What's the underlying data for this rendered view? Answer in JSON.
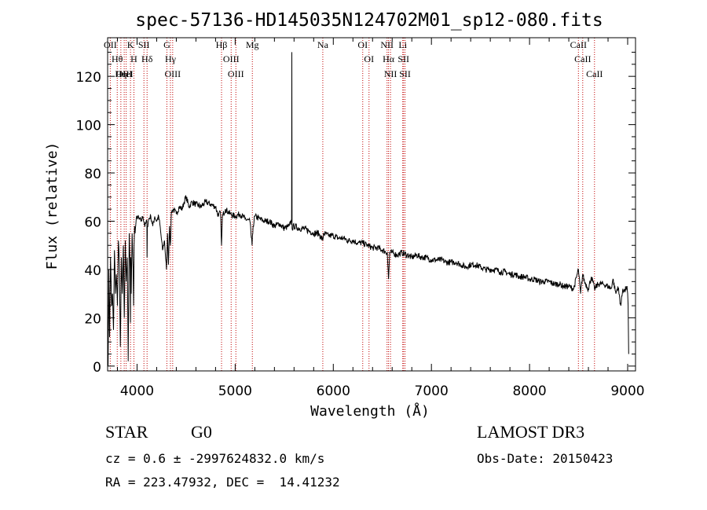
{
  "chart_data": {
    "type": "line",
    "title": "spec-57136-HD145035N124702M01_sp12-080.fits",
    "xlabel": "Wavelength (Å)",
    "ylabel": "Flux (relative)",
    "xlim": [
      3700,
      9080
    ],
    "ylim": [
      -2,
      136
    ],
    "xticks": [
      4000,
      5000,
      6000,
      7000,
      8000,
      9000
    ],
    "yticks": [
      0,
      20,
      40,
      60,
      80,
      100,
      120
    ],
    "grid": false,
    "series": [
      {
        "name": "flux",
        "x": [
          3700,
          3705,
          3712,
          3720,
          3730,
          3740,
          3750,
          3760,
          3770,
          3780,
          3790,
          3800,
          3810,
          3820,
          3830,
          3840,
          3850,
          3860,
          3870,
          3880,
          3890,
          3900,
          3910,
          3920,
          3930,
          3933,
          3936,
          3940,
          3950,
          3960,
          3965,
          3968,
          3970,
          3975,
          3980,
          3990,
          4000,
          4020,
          4040,
          4060,
          4080,
          4100,
          4102,
          4105,
          4120,
          4140,
          4160,
          4180,
          4200,
          4220,
          4240,
          4260,
          4280,
          4300,
          4310,
          4320,
          4330,
          4340,
          4350,
          4370,
          4400,
          4430,
          4460,
          4480,
          4500,
          4530,
          4560,
          4600,
          4650,
          4700,
          4750,
          4800,
          4830,
          4850,
          4861,
          4870,
          4900,
          4950,
          5000,
          5050,
          5100,
          5150,
          5172,
          5183,
          5200,
          5250,
          5300,
          5350,
          5400,
          5450,
          5500,
          5550,
          5575,
          5577,
          5580,
          5600,
          5650,
          5700,
          5750,
          5800,
          5850,
          5893,
          5900,
          5950,
          6000,
          6050,
          6100,
          6150,
          6200,
          6250,
          6300,
          6350,
          6400,
          6450,
          6500,
          6550,
          6563,
          6575,
          6600,
          6650,
          6700,
          6750,
          6800,
          6850,
          6900,
          6950,
          7000,
          7050,
          7100,
          7150,
          7200,
          7250,
          7300,
          7350,
          7400,
          7450,
          7500,
          7550,
          7600,
          7650,
          7700,
          7750,
          7800,
          7850,
          7900,
          7950,
          8000,
          8050,
          8100,
          8150,
          8200,
          8250,
          8300,
          8350,
          8400,
          8450,
          8498,
          8520,
          8542,
          8560,
          8600,
          8630,
          8662,
          8700,
          8750,
          8800,
          8830,
          8850,
          8880,
          8900,
          8930,
          8950,
          8970,
          8990,
          9000,
          9005,
          9010
        ],
        "values": [
          20,
          0,
          40,
          12,
          45,
          25,
          30,
          15,
          48,
          30,
          38,
          25,
          52,
          42,
          8,
          45,
          30,
          50,
          20,
          52,
          35,
          45,
          2,
          55,
          40,
          18,
          45,
          30,
          55,
          40,
          25,
          38,
          50,
          58,
          55,
          60,
          62,
          61,
          60,
          62,
          58,
          60,
          45,
          58,
          61,
          62,
          58,
          62,
          60,
          62,
          56,
          48,
          52,
          40,
          55,
          42,
          58,
          50,
          64,
          65,
          63,
          66,
          65,
          68,
          70,
          66,
          68,
          67,
          66,
          68,
          67,
          66,
          62,
          64,
          50,
          62,
          65,
          63,
          62,
          63,
          61,
          60,
          50,
          58,
          62,
          61,
          60,
          60,
          58,
          59,
          57,
          58,
          60,
          130,
          57,
          58,
          57,
          57,
          56,
          55,
          55,
          52,
          55,
          54,
          54,
          53,
          53,
          52,
          52,
          51,
          51,
          50,
          49,
          49,
          48,
          47,
          36,
          47,
          47,
          46,
          47,
          46,
          45,
          46,
          45,
          45,
          44,
          44,
          44,
          43,
          43,
          43,
          42,
          41,
          42,
          42,
          41,
          40,
          40,
          40,
          39,
          39,
          38,
          38,
          37,
          37,
          36,
          36,
          35,
          35,
          35,
          34,
          34,
          33,
          33,
          32,
          40,
          30,
          38,
          35,
          32,
          37,
          32,
          34,
          34,
          33,
          32,
          36,
          30,
          33,
          25,
          32,
          31,
          33,
          30,
          25,
          5
        ]
      }
    ],
    "line_marks": [
      {
        "wavelength": 3727,
        "label": "OII"
      },
      {
        "wavelength": 3798,
        "label": "Hθ"
      },
      {
        "wavelength": 3835,
        "label": "Hη"
      },
      {
        "wavelength": 3869,
        "label": "OIII"
      },
      {
        "wavelength": 3889,
        "label": "HeI"
      },
      {
        "wavelength": 3933,
        "label": "K"
      },
      {
        "wavelength": 3968,
        "label": "H"
      },
      {
        "wavelength": 4070,
        "label": "SII"
      },
      {
        "wavelength": 4102,
        "label": "Hδ"
      },
      {
        "wavelength": 4304,
        "label": "G"
      },
      {
        "wavelength": 4340,
        "label": "Hγ"
      },
      {
        "wavelength": 4363,
        "label": "OIII"
      },
      {
        "wavelength": 4861,
        "label": "Hβ"
      },
      {
        "wavelength": 4959,
        "label": "OIII"
      },
      {
        "wavelength": 5007,
        "label": "OIII"
      },
      {
        "wavelength": 5175,
        "label": "Mg"
      },
      {
        "wavelength": 5893,
        "label": "Na"
      },
      {
        "wavelength": 6300,
        "label": "OI"
      },
      {
        "wavelength": 6364,
        "label": "OI"
      },
      {
        "wavelength": 6548,
        "label": "NII"
      },
      {
        "wavelength": 6563,
        "label": "Hα"
      },
      {
        "wavelength": 6583,
        "label": "NII"
      },
      {
        "wavelength": 6708,
        "label": "Li"
      },
      {
        "wavelength": 6716,
        "label": "SII"
      },
      {
        "wavelength": 6731,
        "label": "SII"
      },
      {
        "wavelength": 8498,
        "label": "CaII"
      },
      {
        "wavelength": 8542,
        "label": "CaII"
      },
      {
        "wavelength": 8662,
        "label": "CaII"
      }
    ]
  },
  "footer": {
    "class_label": "STAR",
    "subclass": "G0",
    "survey": "LAMOST DR3",
    "cz_text": "cz = 0.6 ± -2997624832.0 km/s",
    "obs_date": "Obs-Date: 20150423",
    "coords": "RA = 223.47932, DEC =  14.41232"
  }
}
